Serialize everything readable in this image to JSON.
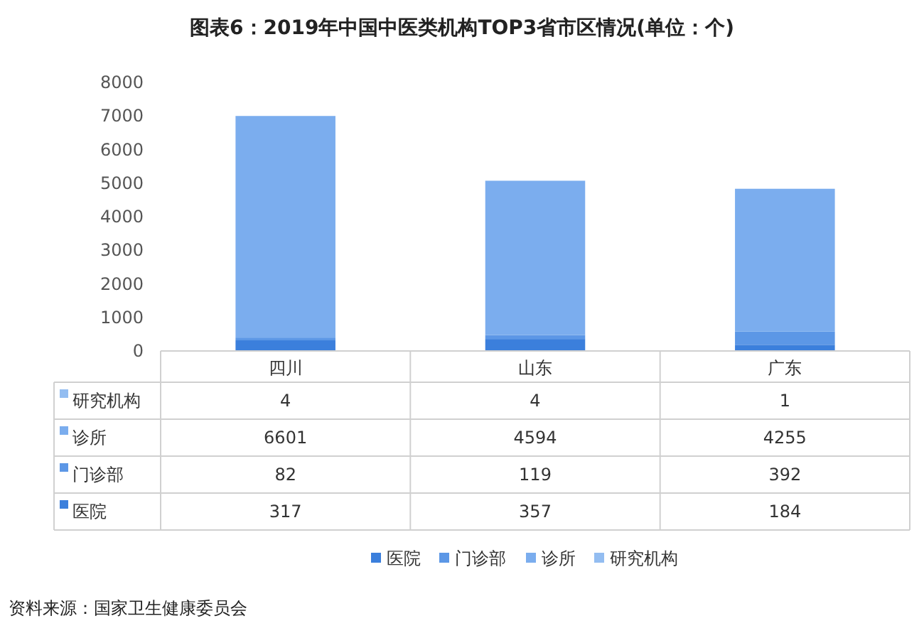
{
  "chart_data": {
    "type": "bar",
    "stacked": true,
    "title": "图表6：2019年中国中医类机构TOP3省市区情况(单位：个)",
    "categories": [
      "四川",
      "山东",
      "广东"
    ],
    "series": [
      {
        "name": "医院",
        "color": "#3b7fdc",
        "values": [
          317,
          357,
          184
        ]
      },
      {
        "name": "门诊部",
        "color": "#5c97e6",
        "values": [
          82,
          119,
          392
        ]
      },
      {
        "name": "诊所",
        "color": "#7badee",
        "values": [
          6601,
          4594,
          4255
        ]
      },
      {
        "name": "研究机构",
        "color": "#93bdf1",
        "values": [
          4,
          4,
          1
        ]
      }
    ],
    "ylim": [
      0,
      8000
    ],
    "yticks": [
      0,
      1000,
      2000,
      3000,
      4000,
      5000,
      6000,
      7000,
      8000
    ],
    "data_labels": true,
    "legend": "bottom",
    "grid": false,
    "annotations": [
      "资料来源：国家卫生健康委员会"
    ]
  }
}
